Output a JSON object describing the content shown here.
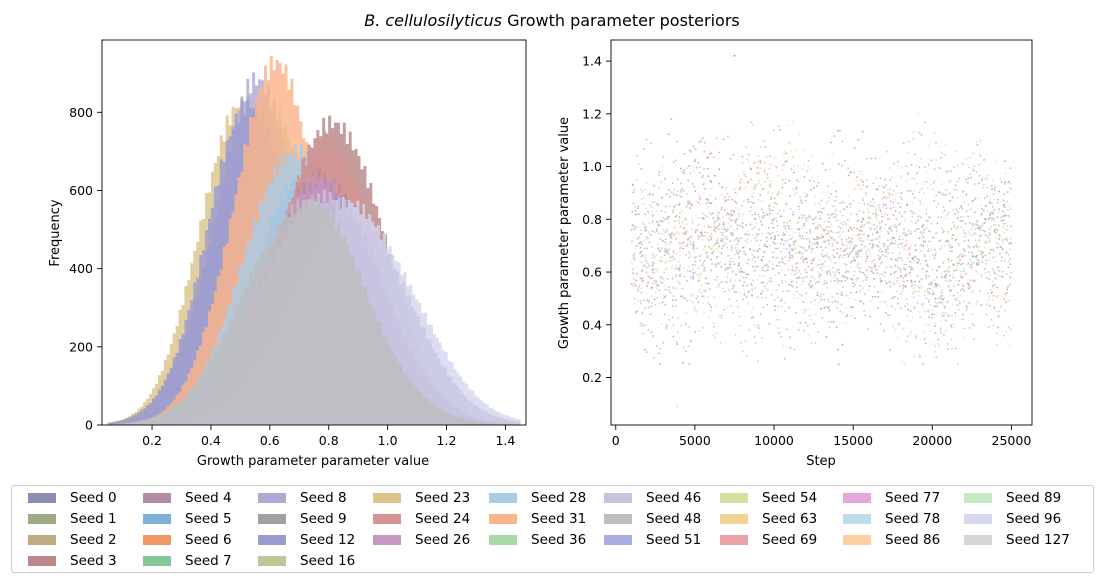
{
  "title_italic": "B. cellulosilyticus",
  "title_rest": " Growth parameter posteriors",
  "legend": [
    {
      "label": "Seed 0",
      "color": "#8c8fb4"
    },
    {
      "label": "Seed 1",
      "color": "#9fab86"
    },
    {
      "label": "Seed 2",
      "color": "#bfab84"
    },
    {
      "label": "Seed 3",
      "color": "#b98887"
    },
    {
      "label": "Seed 4",
      "color": "#b58aa5"
    },
    {
      "label": "Seed 5",
      "color": "#7faed6"
    },
    {
      "label": "Seed 6",
      "color": "#ef9866"
    },
    {
      "label": "Seed 7",
      "color": "#85c79a"
    },
    {
      "label": "Seed 8",
      "color": "#aeaad6"
    },
    {
      "label": "Seed 9",
      "color": "#a0a0a0"
    },
    {
      "label": "Seed 12",
      "color": "#9b9bd0"
    },
    {
      "label": "Seed 16",
      "color": "#bcc79a"
    },
    {
      "label": "Seed 23",
      "color": "#dcc48a"
    },
    {
      "label": "Seed 24",
      "color": "#d49593"
    },
    {
      "label": "Seed 26",
      "color": "#c796c4"
    },
    {
      "label": "Seed 28",
      "color": "#a8cce6"
    },
    {
      "label": "Seed 31",
      "color": "#fbb58a"
    },
    {
      "label": "Seed 36",
      "color": "#aad9a9"
    },
    {
      "label": "Seed 46",
      "color": "#c6c3e0"
    },
    {
      "label": "Seed 48",
      "color": "#bdbdbd"
    },
    {
      "label": "Seed 51",
      "color": "#a9ade0"
    },
    {
      "label": "Seed 54",
      "color": "#d3e0a2"
    },
    {
      "label": "Seed 63",
      "color": "#f0d494"
    },
    {
      "label": "Seed 69",
      "color": "#e8a3a7"
    },
    {
      "label": "Seed 77",
      "color": "#e3a7db"
    },
    {
      "label": "Seed 78",
      "color": "#c0dcec"
    },
    {
      "label": "Seed 86",
      "color": "#fdcfa2"
    },
    {
      "label": "Seed 89",
      "color": "#c4e8c2"
    },
    {
      "label": "Seed 96",
      "color": "#d6d6ee"
    },
    {
      "label": "Seed 127",
      "color": "#d6d6d6"
    }
  ],
  "chart_data": [
    {
      "type": "bar",
      "subtype": "histogram",
      "xlabel": "Growth parameter parameter value",
      "ylabel": "Frequency",
      "xlim": [
        0.03,
        1.47
      ],
      "ylim": [
        0,
        985
      ],
      "xticks": [
        0.2,
        0.4,
        0.6,
        0.8,
        1.0,
        1.2,
        1.4
      ],
      "xtick_labels": [
        "0.2",
        "0.4",
        "0.6",
        "0.8",
        "1.0",
        "1.2",
        "1.4"
      ],
      "yticks": [
        0,
        200,
        400,
        600,
        800
      ],
      "series": [
        {
          "name": "Seed 1",
          "mean": 0.71,
          "sd": 0.21,
          "peak": 640
        },
        {
          "name": "Seed 23",
          "mean": 0.5,
          "sd": 0.14,
          "peak": 830
        },
        {
          "name": "Seed 16",
          "mean": 0.58,
          "sd": 0.17,
          "peak": 720
        },
        {
          "name": "Seed 2",
          "mean": 0.55,
          "sd": 0.16,
          "peak": 700
        },
        {
          "name": "Seed 7",
          "mean": 0.58,
          "sd": 0.15,
          "peak": 760
        },
        {
          "name": "Seed 36",
          "mean": 0.6,
          "sd": 0.15,
          "peak": 790
        },
        {
          "name": "Seed 8",
          "mean": 0.56,
          "sd": 0.15,
          "peak": 860
        },
        {
          "name": "Seed 12",
          "mean": 0.54,
          "sd": 0.15,
          "peak": 820
        },
        {
          "name": "Seed 6",
          "mean": 0.66,
          "sd": 0.16,
          "peak": 640
        },
        {
          "name": "Seed 31",
          "mean": 0.62,
          "sd": 0.15,
          "peak": 900
        },
        {
          "name": "Seed 5",
          "mean": 0.73,
          "sd": 0.18,
          "peak": 640
        },
        {
          "name": "Seed 28",
          "mean": 0.7,
          "sd": 0.18,
          "peak": 720
        },
        {
          "name": "Seed 3",
          "mean": 0.82,
          "sd": 0.17,
          "peak": 790
        },
        {
          "name": "Seed 24",
          "mean": 0.8,
          "sd": 0.18,
          "peak": 720
        },
        {
          "name": "Seed 4",
          "mean": 0.78,
          "sd": 0.18,
          "peak": 650
        },
        {
          "name": "Seed 26",
          "mean": 0.76,
          "sd": 0.18,
          "peak": 640
        },
        {
          "name": "Seed 0",
          "mean": 0.86,
          "sd": 0.2,
          "peak": 570
        },
        {
          "name": "Seed 96",
          "mean": 0.88,
          "sd": 0.21,
          "peak": 560
        },
        {
          "name": "Seed 46",
          "mean": 0.78,
          "sd": 0.2,
          "peak": 600
        },
        {
          "name": "Seed 48",
          "mean": 0.72,
          "sd": 0.2,
          "peak": 580
        }
      ]
    },
    {
      "type": "scatter",
      "subtype": "trace",
      "xlabel": "Step",
      "ylabel": "Growth parameter parameter value",
      "xlim": [
        -300,
        26300
      ],
      "ylim": [
        0.02,
        1.48
      ],
      "xticks": [
        0,
        5000,
        10000,
        15000,
        20000,
        25000
      ],
      "xtick_labels": [
        "0",
        "5000",
        "10000",
        "15000",
        "20000",
        "25000"
      ],
      "yticks": [
        0.2,
        0.4,
        0.6,
        0.8,
        1.0,
        1.2,
        1.4
      ],
      "ytick_labels": [
        "0.2",
        "0.4",
        "0.6",
        "0.8",
        "1.0",
        "1.2",
        "1.4"
      ],
      "step_range": [
        1000,
        25000
      ],
      "value_band": {
        "center": 0.7,
        "low": 0.3,
        "high": 1.1
      },
      "observed_extremes": {
        "max": 1.42,
        "min": 0.09
      }
    }
  ]
}
